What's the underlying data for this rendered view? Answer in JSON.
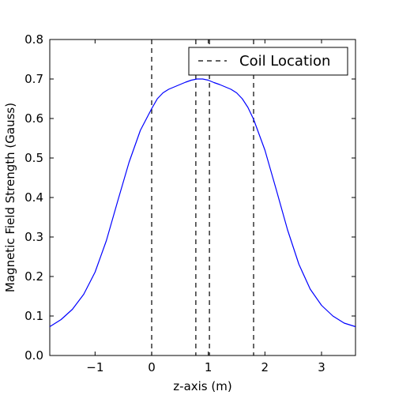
{
  "chart_data": {
    "type": "line",
    "xlabel": "z-axis (m)",
    "ylabel": "Magnetic Field Strength (Gauss)",
    "xlim": [
      -1.8,
      3.6
    ],
    "ylim": [
      0.0,
      0.8
    ],
    "xticks": [
      -1,
      0,
      1,
      2,
      3
    ],
    "xtick_labels": [
      "−1",
      "0",
      "1",
      "2",
      "3"
    ],
    "yticks": [
      0.0,
      0.1,
      0.2,
      0.3,
      0.4,
      0.5,
      0.6,
      0.7,
      0.8
    ],
    "ytick_labels": [
      "0.0",
      "0.1",
      "0.2",
      "0.3",
      "0.4",
      "0.5",
      "0.6",
      "0.7",
      "0.8"
    ],
    "grid": false,
    "legend_position": "top-right",
    "series": [
      {
        "color": "#0000ff",
        "x": [
          -1.8,
          -1.6,
          -1.4,
          -1.2,
          -1.0,
          -0.8,
          -0.6,
          -0.4,
          -0.2,
          0.0,
          0.1,
          0.2,
          0.3,
          0.4,
          0.5,
          0.6,
          0.7,
          0.8,
          0.9,
          1.0,
          1.1,
          1.2,
          1.3,
          1.4,
          1.5,
          1.6,
          1.7,
          1.8,
          2.0,
          2.2,
          2.4,
          2.6,
          2.8,
          3.0,
          3.2,
          3.4,
          3.6
        ],
        "y": [
          0.073,
          0.091,
          0.117,
          0.155,
          0.211,
          0.291,
          0.391,
          0.489,
          0.57,
          0.625,
          0.65,
          0.665,
          0.674,
          0.68,
          0.686,
          0.692,
          0.697,
          0.7,
          0.7,
          0.697,
          0.691,
          0.686,
          0.68,
          0.674,
          0.665,
          0.65,
          0.628,
          0.598,
          0.52,
          0.42,
          0.318,
          0.231,
          0.168,
          0.127,
          0.1,
          0.082,
          0.073
        ]
      },
      {
        "name": "Coil Location",
        "color": "#000000",
        "style": "dashed",
        "vlines": [
          0.0,
          0.78,
          1.02,
          1.8
        ]
      }
    ]
  }
}
